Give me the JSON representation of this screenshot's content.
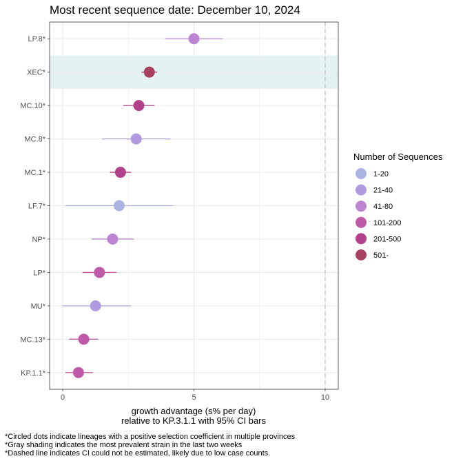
{
  "chart_data": {
    "type": "scatter",
    "title": "Most recent sequence date: December 10, 2024",
    "xlabel_line1": "growth advantage (s% per day)",
    "xlabel_line2": "relative to  KP.3.1.1  with 95% CI bars",
    "xlim": [
      -0.5,
      10.5
    ],
    "xticks": [
      0,
      5,
      10
    ],
    "dashed_x": 10,
    "grid": true,
    "shaded_category": "XEC*",
    "categories": [
      "LP.8*",
      "XEC*",
      "MC.10*",
      "MC.8*",
      "MC.1*",
      "LF.7*",
      "NP*",
      "LP*",
      "MU*",
      "MC.13*",
      "KP.1.1*"
    ],
    "points": [
      {
        "lineage": "LP.8*",
        "estimate": 5.0,
        "ci_low": 3.9,
        "ci_high": 6.1,
        "group": "41-80"
      },
      {
        "lineage": "XEC*",
        "estimate": 3.3,
        "ci_low": 3.0,
        "ci_high": 3.6,
        "group": "501-"
      },
      {
        "lineage": "MC.10*",
        "estimate": 2.9,
        "ci_low": 2.3,
        "ci_high": 3.5,
        "group": "201-500"
      },
      {
        "lineage": "MC.8*",
        "estimate": 2.8,
        "ci_low": 1.5,
        "ci_high": 4.1,
        "group": "21-40"
      },
      {
        "lineage": "MC.1*",
        "estimate": 2.2,
        "ci_low": 1.8,
        "ci_high": 2.6,
        "group": "201-500"
      },
      {
        "lineage": "LF.7*",
        "estimate": 2.15,
        "ci_low": 0.1,
        "ci_high": 4.2,
        "group": "1-20"
      },
      {
        "lineage": "NP*",
        "estimate": 1.9,
        "ci_low": 1.1,
        "ci_high": 2.7,
        "group": "41-80"
      },
      {
        "lineage": "LP*",
        "estimate": 1.4,
        "ci_low": 0.75,
        "ci_high": 2.05,
        "group": "101-200"
      },
      {
        "lineage": "MU*",
        "estimate": 1.25,
        "ci_low": 0.0,
        "ci_high": 2.6,
        "group": "21-40"
      },
      {
        "lineage": "MC.13*",
        "estimate": 0.8,
        "ci_low": 0.25,
        "ci_high": 1.35,
        "group": "101-200"
      },
      {
        "lineage": "KP.1.1*",
        "estimate": 0.6,
        "ci_low": 0.1,
        "ci_high": 1.15,
        "group": "101-200"
      }
    ],
    "legend": {
      "title": "Number of Sequences",
      "placement": "right",
      "items": [
        {
          "label": "1-20",
          "color": "#aab4e3"
        },
        {
          "label": "21-40",
          "color": "#b09be0"
        },
        {
          "label": "41-80",
          "color": "#bb85d2"
        },
        {
          "label": "101-200",
          "color": "#bf5aa8"
        },
        {
          "label": "201-500",
          "color": "#b3408a"
        },
        {
          "label": "501-",
          "color": "#a8405f"
        }
      ]
    },
    "colors": {
      "shade": "#e5f2f2",
      "grid": "#ebebeb",
      "panel_border": "#333333",
      "dashed": "#bdbdbd"
    }
  },
  "footnotes": [
    "*Circled dots indicate lineages with a positive selection coefficient in multiple provinces",
    "*Gray shading indicates the most prevalent strain in the last two weeks",
    "*Dashed line indicates CI could not be estimated, likely due to low case counts."
  ]
}
